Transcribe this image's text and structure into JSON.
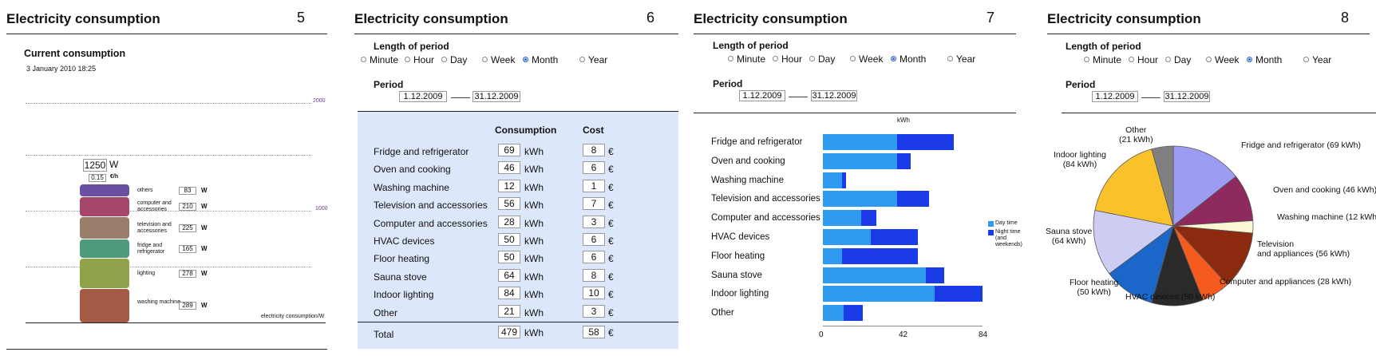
{
  "title": "Electricity consumption",
  "panels": {
    "p5": {
      "number": "5",
      "heading": "Current consumption",
      "date": "3 January 2010 18:25",
      "axis_max": "2000",
      "axis_mid": "1000",
      "power_value": "1250",
      "power_unit": "W",
      "cost_value": "0.15",
      "cost_unit": "€/h",
      "footer": "electricity consumption/W",
      "unit_w": "W",
      "stack": [
        {
          "label": "others",
          "value": "83",
          "color": "#6a4fa3"
        },
        {
          "label": "computer and accessories",
          "value": "210",
          "color": "#a8456c"
        },
        {
          "label": "television and accessories",
          "value": "225",
          "color": "#9a7e6b"
        },
        {
          "label": "fridge and refrigerator",
          "value": "165",
          "color": "#4f9a7b"
        },
        {
          "label": "lighting",
          "value": "278",
          "color": "#8fa34a"
        },
        {
          "label": "washing machine",
          "value": "289",
          "color": "#a55a45"
        }
      ]
    },
    "p6": {
      "number": "6",
      "length_label": "Length of period",
      "period_label": "Period",
      "options": [
        "Minute",
        "Hour",
        "Day",
        "Week",
        "Month",
        "Year"
      ],
      "selected": "Month",
      "date_from": "1.12.2009",
      "date_to": "31.12.2009",
      "col_consumption": "Consumption",
      "col_cost": "Cost",
      "unit_kwh": "kWh",
      "unit_eur": "€",
      "rows": [
        {
          "label": "Fridge and refrigerator",
          "kwh": "69",
          "cost": "8"
        },
        {
          "label": "Oven and cooking",
          "kwh": "46",
          "cost": "6"
        },
        {
          "label": "Washing machine",
          "kwh": "12",
          "cost": "1"
        },
        {
          "label": "Television and accessories",
          "kwh": "56",
          "cost": "7"
        },
        {
          "label": "Computer and accessories",
          "kwh": "28",
          "cost": "3"
        },
        {
          "label": "HVAC devices",
          "kwh": "50",
          "cost": "6"
        },
        {
          "label": "Floor heating",
          "kwh": "50",
          "cost": "6"
        },
        {
          "label": "Sauna stove",
          "kwh": "64",
          "cost": "8"
        },
        {
          "label": "Indoor lighting",
          "kwh": "84",
          "cost": "10"
        },
        {
          "label": "Other",
          "kwh": "21",
          "cost": "3"
        }
      ],
      "total_label": "Total",
      "total_kwh": "479",
      "total_cost": "58"
    },
    "p7": {
      "number": "7"
    },
    "p8": {
      "number": "8"
    }
  },
  "chart_data": [
    {
      "type": "bar",
      "orientation": "horizontal",
      "stacked": true,
      "unit_label": "kWh",
      "categories": [
        "Fridge and refrigerator",
        "Oven and cooking",
        "Washing machine",
        "Television and accessories",
        "Computer and accessories",
        "HVAC devices",
        "Floor heating",
        "Sauna stove",
        "Indoor lighting",
        "Other"
      ],
      "series": [
        {
          "name": "Day time",
          "color": "#2e9af0",
          "values": [
            39,
            39,
            10,
            39,
            20,
            25,
            10,
            54,
            59,
            11
          ]
        },
        {
          "name": "Night time (and weekends)",
          "color": "#1c3be8",
          "values": [
            30,
            7,
            2,
            17,
            8,
            25,
            40,
            10,
            25,
            10
          ]
        }
      ],
      "xticks": [
        "0",
        "42",
        "84"
      ],
      "xlim": [
        0,
        84
      ],
      "legend_position": "right"
    },
    {
      "type": "pie",
      "slices": [
        {
          "label": "Fridge and refrigerator (69 kWh)",
          "value": 69,
          "color": "#9b9cf2"
        },
        {
          "label": "Oven and cooking (46 kWh)",
          "value": 46,
          "color": "#8e2a5e"
        },
        {
          "label": "Washing machine (12 kWh)",
          "value": 12,
          "color": "#fbf7d2"
        },
        {
          "label": "Television and appliances (56 kWh)",
          "value": 56,
          "color": "#8b2a0f"
        },
        {
          "label": "Computer and appliances (28 kWh)",
          "value": 28,
          "color": "#f55b1f"
        },
        {
          "label": "HVAC devices (50 kWh)",
          "value": 50,
          "color": "#2a2a2a"
        },
        {
          "label": "Floor heating (50 kWh)",
          "value": 50,
          "color": "#1a66c9"
        },
        {
          "label": "Sauna stove (64 kWh)",
          "value": 64,
          "color": "#cdcdf3"
        },
        {
          "label": "Indoor lighting (84 kWh)",
          "value": 84,
          "color": "#f9c12a"
        },
        {
          "label": "Other (21 kWh)",
          "value": 21,
          "color": "#808080"
        }
      ]
    }
  ]
}
